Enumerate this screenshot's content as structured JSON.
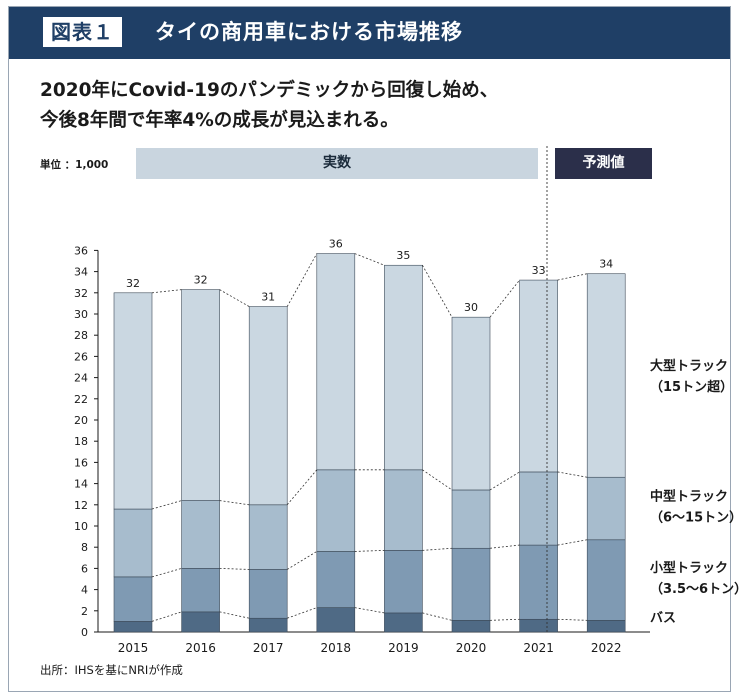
{
  "header": {
    "figure_label": "図表１",
    "title": "タイの商用車における市場推移"
  },
  "subtitle_lines": [
    "2020年にCovid-19のパンデミックから回復し始め、",
    "今後8年間で年率4%の成長が見込まれる。"
  ],
  "unit_label": "単位 ：1,000",
  "band_actual": "実数",
  "band_forecast": "予測値",
  "source": "出所：IHSを基にNRIが作成",
  "colors": {
    "header": "#1f3f66",
    "bus": "#4f6a85",
    "small": "#7f9ab3",
    "medium": "#a7bccd",
    "large": "#cad7e1",
    "forecast_band": "#2b2f4a",
    "actual_band": "#c9d5df"
  },
  "chart_data": {
    "type": "bar",
    "stacked": true,
    "categories": [
      "2015",
      "2016",
      "2017",
      "2018",
      "2019",
      "2020",
      "2021",
      "2022"
    ],
    "series": [
      {
        "name": "バス",
        "values": [
          1.0,
          1.9,
          1.3,
          2.3,
          1.8,
          1.1,
          1.2,
          1.1
        ]
      },
      {
        "name": "小型トラック（3.5～6トン）",
        "values": [
          4.2,
          4.1,
          4.6,
          5.3,
          5.9,
          6.8,
          7.0,
          7.6
        ]
      },
      {
        "name": "中型トラック（6～15トン）",
        "values": [
          6.4,
          6.4,
          6.1,
          7.7,
          7.6,
          5.5,
          6.9,
          5.9
        ]
      },
      {
        "name": "大型トラック（15トン超）",
        "values": [
          20.4,
          19.9,
          18.7,
          20.4,
          19.3,
          16.3,
          18.1,
          19.2
        ]
      }
    ],
    "series_labels": [
      [
        "バス"
      ],
      [
        "小型トラック",
        "（3.5～6トン）"
      ],
      [
        "中型トラック",
        "（6～15トン）"
      ],
      [
        "大型トラック",
        "（15トン超）"
      ]
    ],
    "totals": [
      "32",
      "32",
      "31",
      "36",
      "35",
      "30",
      "33",
      "34"
    ],
    "yticks": [
      "0",
      "2",
      "4",
      "6",
      "8",
      "10",
      "12",
      "14",
      "16",
      "18",
      "20",
      "22",
      "24",
      "26",
      "28",
      "30",
      "32",
      "34",
      "36"
    ],
    "ylim": [
      0,
      36
    ],
    "actual_years": [
      "2015",
      "2016",
      "2017",
      "2018",
      "2019",
      "2020",
      "2021"
    ],
    "forecast_years": [
      "2022"
    ],
    "title": "タイの商用車における市場推移",
    "xlabel": "",
    "ylabel": ""
  }
}
